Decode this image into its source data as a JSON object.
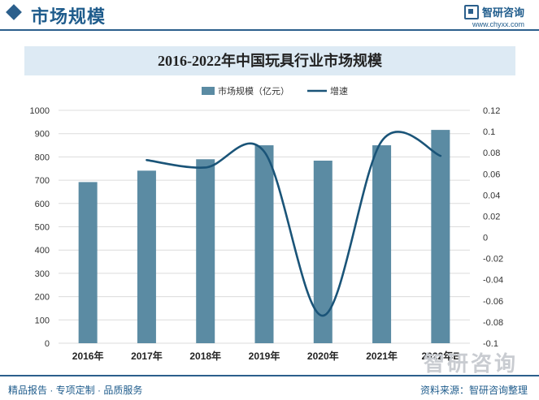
{
  "header": {
    "title": "市场规模",
    "logo_text": "智研咨询",
    "logo_url": "www.chyxx.com"
  },
  "chart_data": {
    "type": "bar",
    "title": "2016-2022年中国玩具行业市场规模",
    "categories": [
      "2016年",
      "2017年",
      "2018年",
      "2019年",
      "2020年",
      "2021年",
      "2022年E"
    ],
    "series": [
      {
        "name": "市场规模（亿元）",
        "type": "bar",
        "axis": "left",
        "color": "#5b8ba3",
        "values": [
          692,
          741,
          790,
          850,
          784,
          850,
          916
        ]
      },
      {
        "name": "增速",
        "type": "line",
        "axis": "right",
        "color": "#1a5478",
        "values": [
          null,
          0.073,
          0.066,
          0.081,
          -0.074,
          0.091,
          0.077
        ]
      }
    ],
    "left_axis": {
      "min": 0,
      "max": 1000,
      "step": 100,
      "ticks": [
        "0",
        "100",
        "200",
        "300",
        "400",
        "500",
        "600",
        "700",
        "800",
        "900",
        "1000"
      ]
    },
    "right_axis": {
      "min": -0.1,
      "max": 0.12,
      "step": 0.02,
      "ticks": [
        "-0.1",
        "-0.08",
        "-0.06",
        "-0.04",
        "-0.02",
        "0",
        "0.02",
        "0.04",
        "0.06",
        "0.08",
        "0.1",
        "0.12"
      ]
    },
    "legend": "top-center",
    "grid": "horizontal"
  },
  "footer": {
    "left": "精品报告 · 专项定制 · 品质服务",
    "right": "资料来源：智研咨询整理"
  },
  "watermark": "智研咨询"
}
